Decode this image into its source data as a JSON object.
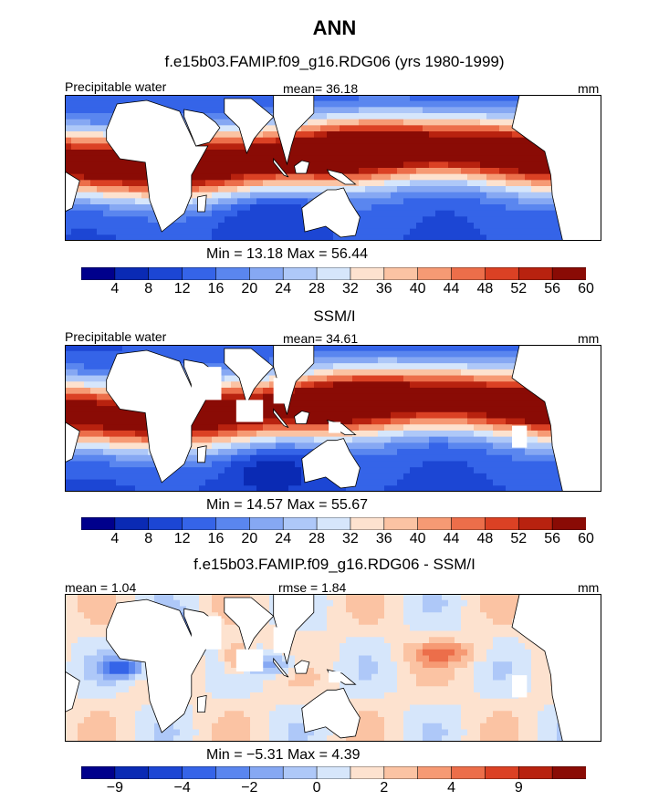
{
  "main_title": "ANN",
  "panels": [
    {
      "title": "f.e15b03.FAMIP.f09_g16.RDG06 (yrs 1980-1999)",
      "left_label": "Precipitable water",
      "center_label": "mean=  36.18",
      "right_label": "mm",
      "stats": "Min =   13.18  Max =   56.44",
      "field": "precip",
      "scale": 1.0
    },
    {
      "title": "SSM/I",
      "left_label": "Precipitable water",
      "center_label": "mean=  34.61",
      "right_label": "mm",
      "stats": "Min =   14.57  Max =   55.67",
      "field": "precip",
      "scale": 0.97
    },
    {
      "title": "f.e15b03.FAMIP.f09_g16.RDG06 - SSM/I",
      "left_label": "mean =    1.04",
      "center_label": "rmse =   1.84",
      "right_label": "mm",
      "stats": "Min =  −5.31  Max =    4.39",
      "field": "diff",
      "scale": 1.0
    }
  ],
  "colorbars": {
    "absolute": {
      "colors": [
        "#00008c",
        "#0a2ab4",
        "#1c46d4",
        "#3564e8",
        "#5a86ef",
        "#86a8f3",
        "#aec8f8",
        "#d6e6fb",
        "#fde2cf",
        "#fbc3a3",
        "#f69a74",
        "#ec6e4a",
        "#db4124",
        "#b8220f",
        "#8a0b05"
      ],
      "labels": [
        "4",
        "8",
        "12",
        "16",
        "20",
        "24",
        "28",
        "32",
        "36",
        "40",
        "44",
        "48",
        "52",
        "56",
        "60"
      ],
      "thresholds": [
        4,
        8,
        12,
        16,
        20,
        24,
        28,
        32,
        36,
        40,
        44,
        48,
        52,
        56,
        60
      ]
    },
    "difference": {
      "colors": [
        "#00008c",
        "#0a2ab4",
        "#1c46d4",
        "#3564e8",
        "#5a86ef",
        "#86a8f3",
        "#aec8f8",
        "#d6e6fb",
        "#fde2cf",
        "#fbc3a3",
        "#f69a74",
        "#ec6e4a",
        "#db4124",
        "#b8220f",
        "#8a0b05"
      ],
      "labels": [
        "−9",
        "",
        "−4",
        "",
        "−2",
        "",
        "0",
        "",
        "2",
        "",
        "4",
        "",
        "9",
        "",
        ""
      ],
      "thresholds": [
        -9,
        -6,
        -4,
        -3,
        -2,
        -1,
        0,
        1,
        2,
        3,
        4,
        6,
        9,
        12,
        15
      ]
    }
  }
}
